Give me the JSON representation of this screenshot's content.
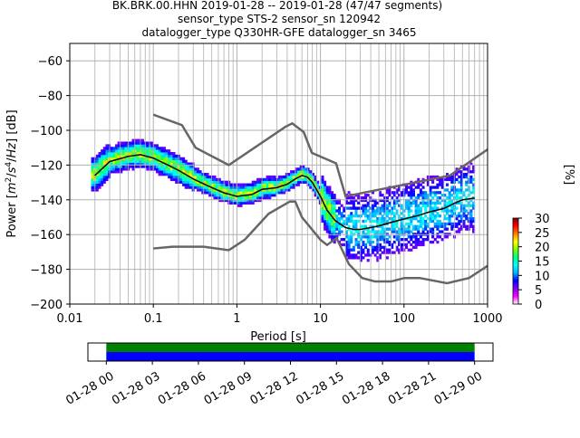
{
  "title_lines": [
    "BK.BRK.00.HHN   2019-01-28 -- 2019-01-28  (47/47 segments)",
    "sensor_type STS-2 sensor_sn 120942",
    "datalogger_type Q330HR-GFE datalogger_sn 3465"
  ],
  "colors": {
    "noise_model": "#666666",
    "mode_line": "#000000",
    "timeline_green": "#008000",
    "timeline_blue": "#0000ff",
    "grid": "#b0b0b0"
  },
  "chart_data": [
    {
      "type": "heatmap",
      "title": "BK.BRK.00.HHN   2019-01-28 -- 2019-01-28  (47/47 segments)",
      "xlabel": "Period [s]",
      "ylabel_parts": [
        "Power [",
        "m",
        "2",
        "/",
        "s",
        "4",
        "/",
        "Hz",
        "] [dB]"
      ],
      "xscale": "log",
      "xlim": [
        0.01,
        1000
      ],
      "ylim": [
        -200,
        -50
      ],
      "xtick_values": [
        0.01,
        0.1,
        1,
        10,
        100,
        1000
      ],
      "xtick_labels": [
        "0.01",
        "0.1",
        "1",
        "10",
        "100",
        "1000"
      ],
      "ytick_values": [
        -200,
        -180,
        -160,
        -140,
        -120,
        -100,
        -80,
        -60
      ],
      "ytick_labels": [
        "−200",
        "−180",
        "−160",
        "−140",
        "−120",
        "−100",
        "−80",
        "−60"
      ],
      "grid": true,
      "colorbar": {
        "label": "[%]",
        "range": [
          0,
          30
        ],
        "tick_values": [
          0,
          5,
          10,
          15,
          20,
          25,
          30
        ],
        "tick_labels": [
          "0",
          "5",
          "10",
          "15",
          "20",
          "25",
          "30"
        ],
        "colormap": [
          "#ffffff",
          "#ff00ff",
          "#7f00ff",
          "#0000ff",
          "#00b4ff",
          "#00ffff",
          "#00ff7f",
          "#7fff00",
          "#ffff00",
          "#ff8000",
          "#ff0000",
          "#800000"
        ]
      },
      "mode_curve": {
        "name": "mode",
        "x": [
          0.02,
          0.03,
          0.05,
          0.07,
          0.1,
          0.15,
          0.2,
          0.3,
          0.5,
          0.7,
          1,
          1.5,
          2,
          3,
          4,
          5,
          6,
          7,
          8,
          10,
          12,
          15,
          20,
          25,
          30,
          40,
          50,
          70,
          100,
          150,
          200,
          300,
          400,
          500,
          700
        ],
        "y": [
          -126,
          -118,
          -115,
          -114,
          -116,
          -120,
          -123,
          -128,
          -133,
          -136,
          -138,
          -137,
          -134,
          -133,
          -131,
          -128,
          -126,
          -127,
          -130,
          -138,
          -146,
          -152,
          -156,
          -157,
          -157,
          -156,
          -155,
          -153,
          -151,
          -149,
          -147,
          -145,
          -142,
          -140,
          -139
        ]
      },
      "nhnm": {
        "name": "NHNM",
        "x": [
          0.1,
          0.22,
          0.32,
          0.8,
          3.8,
          4.6,
          6.3,
          7.9,
          15.4,
          20,
          354.8,
          1000
        ],
        "y": [
          -91,
          -97,
          -110,
          -120,
          -98,
          -96,
          -101,
          -113,
          -119,
          -138,
          -126,
          -111
        ]
      },
      "nlnm": {
        "name": "NLNM",
        "x": [
          0.1,
          0.17,
          0.4,
          0.8,
          1.24,
          2.4,
          4.3,
          5,
          6,
          10,
          12,
          15.6,
          21.9,
          31.6,
          45,
          70,
          101,
          154,
          328,
          600,
          1000
        ],
        "y": [
          -168,
          -167,
          -167,
          -169,
          -163,
          -148,
          -141,
          -141,
          -150,
          -163,
          -166,
          -162,
          -177,
          -185,
          -187,
          -187,
          -185,
          -185,
          -188,
          -185,
          -178
        ]
      }
    },
    {
      "type": "timeline",
      "x_tick_labels": [
        "01-28 00",
        "01-28 03",
        "01-28 06",
        "01-28 09",
        "01-28 12",
        "01-28 15",
        "01-28 18",
        "01-28 21",
        "01-29 00"
      ],
      "x_tick_hours": [
        0,
        3,
        6,
        9,
        12,
        15,
        18,
        21,
        24
      ],
      "xlim_hours": [
        -1.2,
        25.2
      ],
      "coverage": [
        {
          "name": "data",
          "start_hour": 0,
          "end_hour": 24,
          "color": "#008000"
        },
        {
          "name": "psd",
          "start_hour": 0,
          "end_hour": 24,
          "color": "#0000ff"
        }
      ]
    }
  ]
}
